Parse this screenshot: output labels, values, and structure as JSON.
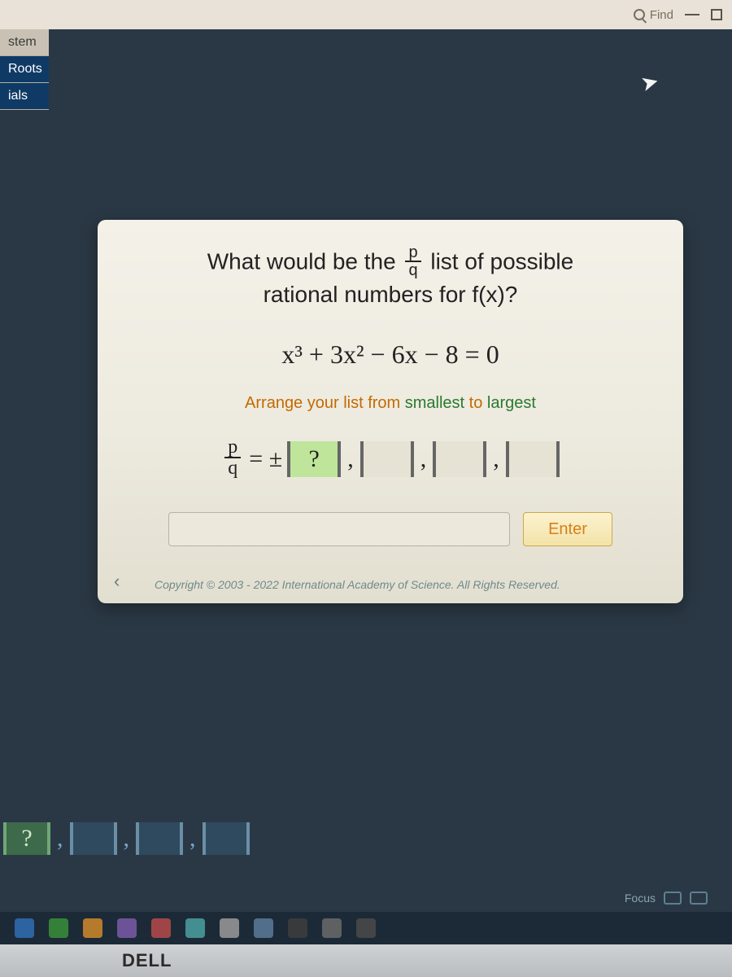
{
  "browser": {
    "find_label": "Find"
  },
  "nav": {
    "tab1": "stem",
    "tab2": "Roots",
    "tab3": "ials"
  },
  "problem": {
    "prompt_before": "What would be the ",
    "prompt_frac_num": "p",
    "prompt_frac_den": "q",
    "prompt_after": " list of possible",
    "prompt_line2": "rational numbers for f(x)?",
    "equation": "x³ + 3x² − 6x − 8 = 0",
    "instruction_a": "Arrange your list from ",
    "instruction_b": "smallest",
    "instruction_c": " to ",
    "instruction_d": "largest",
    "answer_frac_num": "p",
    "answer_frac_den": "q",
    "equals": " = ±",
    "active_placeholder": "?",
    "comma": ",",
    "slot_count": 4,
    "enter_label": "Enter",
    "nav_prev": "‹",
    "copyright": "Copyright © 2003 - 2022 International Academy of Science. All Rights Reserved."
  },
  "status": {
    "focus": "Focus"
  },
  "bezel": {
    "brand": "DELL"
  },
  "colors": {
    "body_bg": "#2a3845",
    "card_bg_top": "#f4f1e8",
    "card_bg_bot": "#e2dfd0",
    "instr_orange": "#c46a00",
    "instr_green": "#2a7a2f",
    "enter_text": "#d77f1a",
    "active_slot": "#bfe59a"
  }
}
